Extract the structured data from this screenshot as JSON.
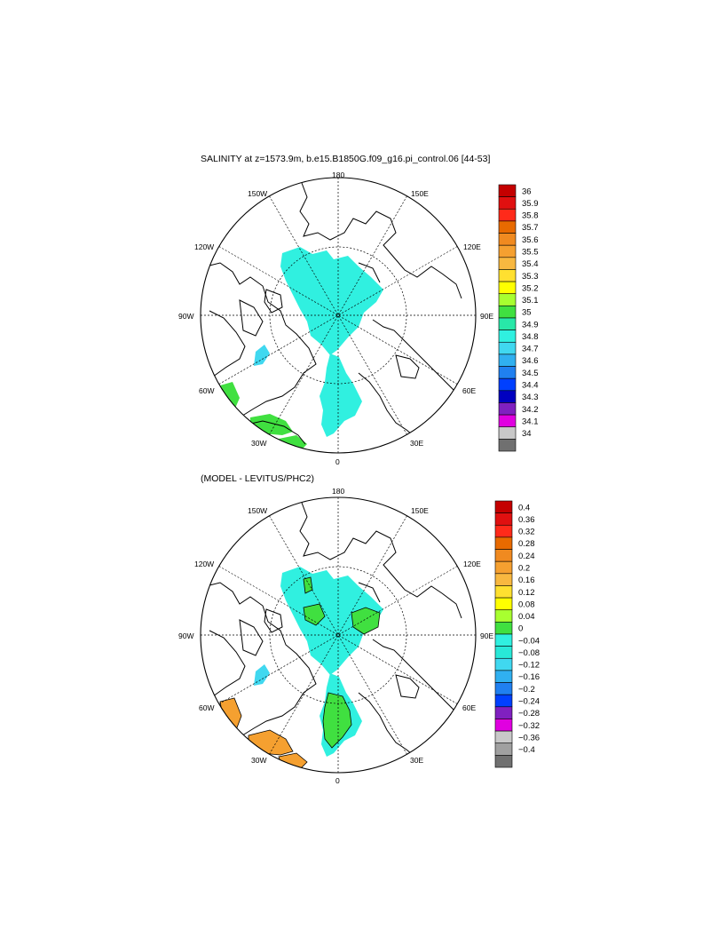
{
  "panels": [
    {
      "title": "SALINITY at z=1573.9m, b.e15.B1850G.f09_g16.pi_control.06 [44-53]",
      "lon_labels": {
        "top": "180",
        "bottom": "0",
        "left": "90W",
        "right": "90E",
        "ul_150": "150W",
        "ul_120": "120W",
        "ur_150": "150E",
        "ur_120": "120E",
        "ll_60": "60W",
        "ll_30": "30W",
        "lr_60": "60E",
        "lr_30": "30E"
      },
      "colorbar": {
        "labels": [
          "36",
          "35.9",
          "35.8",
          "35.7",
          "35.6",
          "35.5",
          "35.4",
          "35.3",
          "35.2",
          "35.1",
          "35",
          "34.9",
          "34.8",
          "34.7",
          "34.6",
          "34.5",
          "34.4",
          "34.3",
          "34.2",
          "34.1",
          "34"
        ],
        "colors": [
          "#c40000",
          "#e01010",
          "#ff2a1a",
          "#e86a00",
          "#f08a20",
          "#f5a030",
          "#f8b840",
          "#ffe030",
          "#ffff00",
          "#a8ff30",
          "#40e040",
          "#28e8a8",
          "#30f0e0",
          "#40d8f0",
          "#30b0f0",
          "#2080f0",
          "#0040ff",
          "#0000c0",
          "#8020c0",
          "#e000e0",
          "#c8c8c8",
          "#707070"
        ]
      }
    },
    {
      "title": "(MODEL - LEVITUS/PHC2)",
      "lon_labels": {
        "top": "180",
        "bottom": "0",
        "left": "90W",
        "right": "90E",
        "ul_150": "150W",
        "ul_120": "120W",
        "ur_150": "150E",
        "ur_120": "120E",
        "ll_60": "60W",
        "ll_30": "30W",
        "lr_60": "60E",
        "lr_30": "30E"
      },
      "colorbar": {
        "labels": [
          "0.4",
          "0.36",
          "0.32",
          "0.28",
          "0.24",
          "0.2",
          "0.16",
          "0.12",
          "0.08",
          "0.04",
          "0",
          "−0.04",
          "−0.08",
          "−0.12",
          "−0.16",
          "−0.2",
          "−0.24",
          "−0.28",
          "−0.32",
          "−0.36",
          "−0.4"
        ],
        "colors": [
          "#c40000",
          "#e01010",
          "#ff2a1a",
          "#e86a00",
          "#f08a20",
          "#f5a030",
          "#f8b840",
          "#ffe030",
          "#ffff00",
          "#a8ff30",
          "#40e040",
          "#30f0e0",
          "#28e8d8",
          "#40d8f0",
          "#30b0f0",
          "#2080f0",
          "#0040ff",
          "#8020c0",
          "#e000e0",
          "#c8c8c8",
          "#a0a0a0",
          "#707070"
        ]
      }
    }
  ],
  "colors": {
    "salinity_field": "#30f0e0",
    "diff_positive": "#40e040",
    "diff_warm": "#f5a030",
    "land_outline": "#000000"
  }
}
